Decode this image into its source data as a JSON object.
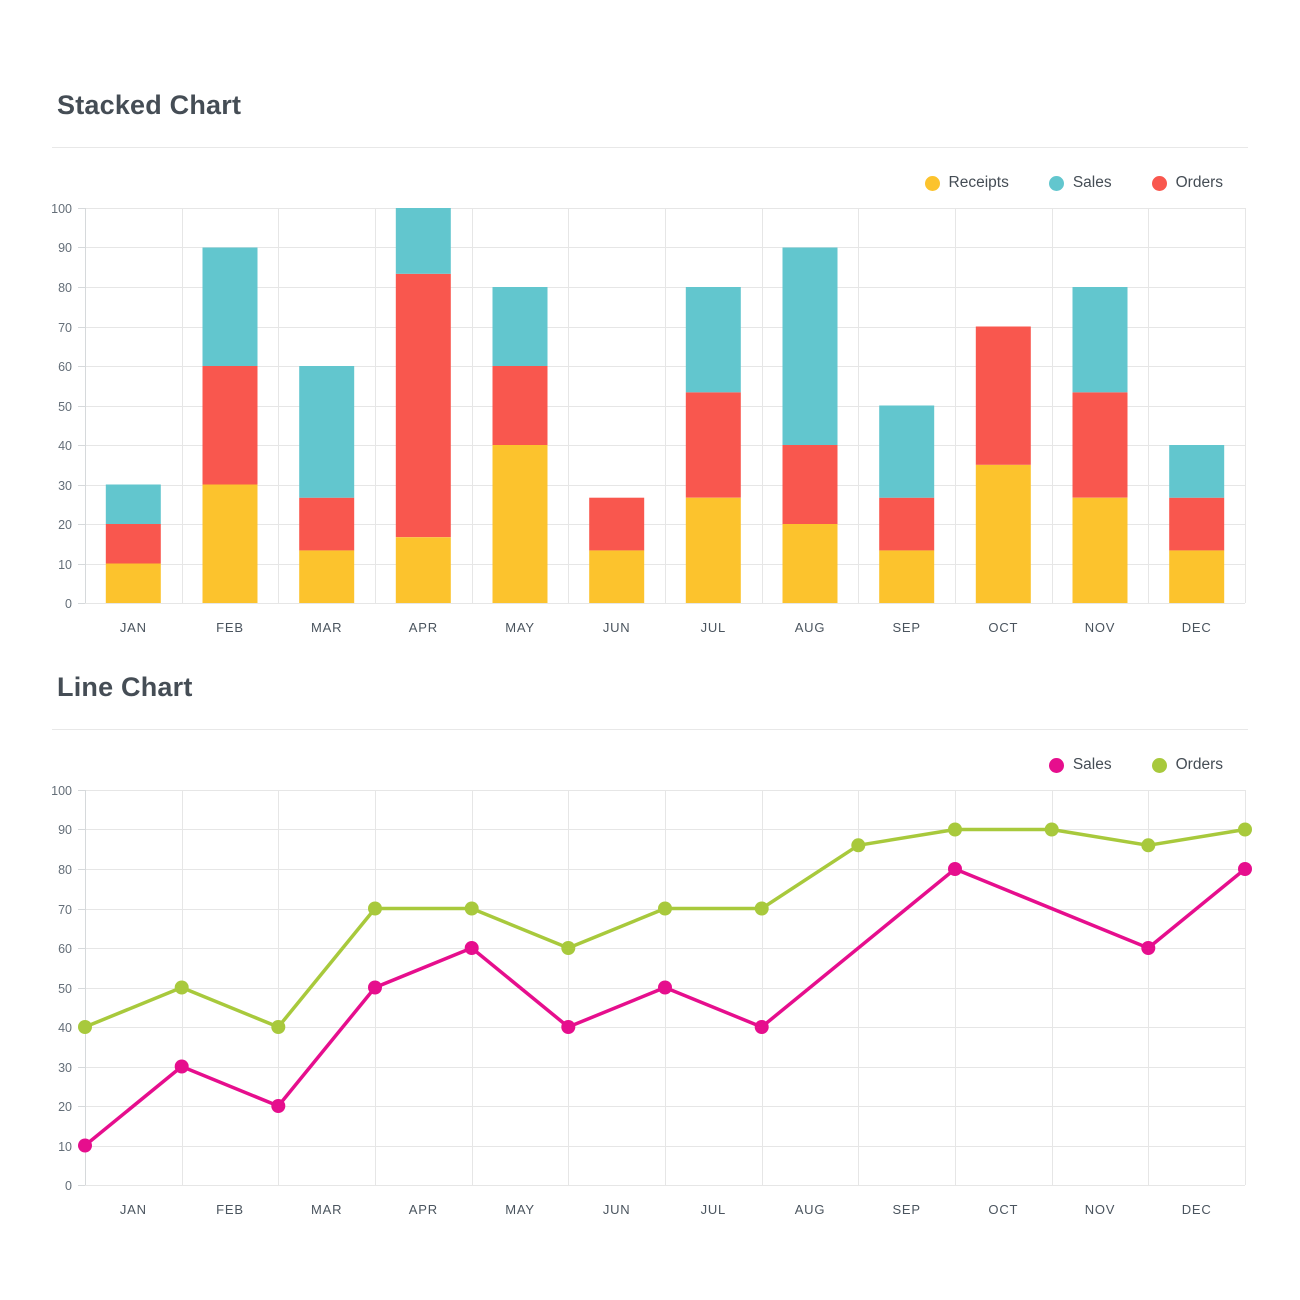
{
  "chart_data": [
    {
      "type": "bar",
      "stacked": true,
      "title": "Stacked Chart",
      "categories": [
        "JAN",
        "FEB",
        "MAR",
        "APR",
        "MAY",
        "JUN",
        "JUL",
        "AUG",
        "SEP",
        "OCT",
        "NOV",
        "DEC"
      ],
      "series": [
        {
          "name": "Receipts",
          "color": "#FCC32D",
          "values": [
            10,
            30,
            13.33,
            16.67,
            40,
            13.33,
            26.67,
            20,
            13.33,
            35,
            26.67,
            13.33
          ]
        },
        {
          "name": "Orders",
          "color": "#F9574E",
          "values": [
            10,
            30,
            13.33,
            66.67,
            20,
            13.33,
            26.67,
            20,
            13.33,
            35,
            26.67,
            13.33
          ]
        },
        {
          "name": "Sales",
          "color": "#62C6CE",
          "values": [
            10,
            30,
            33.33,
            16.67,
            20,
            0,
            26.67,
            50,
            23.33,
            0,
            26.67,
            13.33
          ]
        }
      ],
      "legend": [
        "Receipts",
        "Sales",
        "Orders"
      ],
      "legend_position": "top-right",
      "xlabel": "",
      "ylabel": "",
      "ylim": [
        0,
        100
      ],
      "yticks": [
        0,
        10,
        20,
        30,
        40,
        50,
        60,
        70,
        80,
        90,
        100
      ],
      "grid": true
    },
    {
      "type": "line",
      "title": "Line Chart",
      "categories": [
        "JAN",
        "FEB",
        "MAR",
        "APR",
        "MAY",
        "JUN",
        "JUL",
        "AUG",
        "SEP",
        "OCT",
        "NOV",
        "DEC"
      ],
      "x_gridline_count": 13,
      "series": [
        {
          "name": "Sales",
          "color": "#E60E8D",
          "points": [
            [
              0,
              10
            ],
            [
              1,
              30
            ],
            [
              2,
              20
            ],
            [
              3,
              50
            ],
            [
              4,
              60
            ],
            [
              5,
              40
            ],
            [
              6,
              50
            ],
            [
              7,
              40
            ],
            [
              9,
              80
            ],
            [
              11,
              60
            ],
            [
              12,
              80
            ]
          ]
        },
        {
          "name": "Orders",
          "color": "#A8C93C",
          "points": [
            [
              0,
              40
            ],
            [
              1,
              50
            ],
            [
              2,
              40
            ],
            [
              3,
              70
            ],
            [
              4,
              70
            ],
            [
              5,
              60
            ],
            [
              6,
              70
            ],
            [
              7,
              70
            ],
            [
              8,
              86
            ],
            [
              9,
              90
            ],
            [
              10,
              90
            ],
            [
              11,
              86
            ],
            [
              12,
              90
            ]
          ]
        }
      ],
      "legend": [
        "Sales",
        "Orders"
      ],
      "legend_position": "top-right",
      "xlabel": "",
      "ylabel": "",
      "ylim": [
        0,
        100
      ],
      "yticks": [
        0,
        10,
        20,
        30,
        40,
        50,
        60,
        70,
        80,
        90,
        100
      ],
      "grid": true
    }
  ]
}
